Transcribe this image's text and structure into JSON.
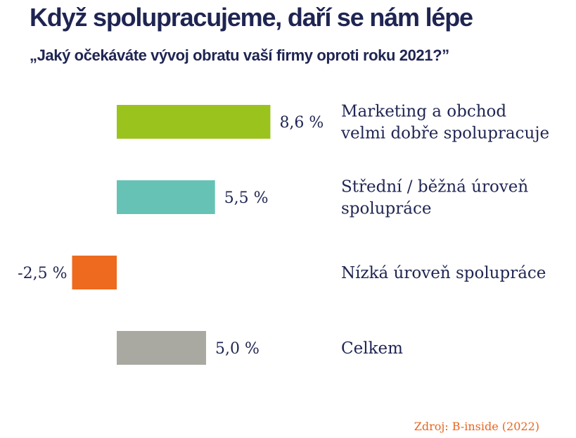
{
  "header": {
    "title": "Když spolupracujeme, daří se nám lépe",
    "subtitle": "„Jaký očekáváte vývoj obratu vaší firmy oproti roku 2021?”"
  },
  "source": "Zdroj: B-inside (2022)",
  "chart_data": {
    "type": "bar",
    "orientation": "horizontal",
    "categories": [
      "Marketing a obchod\nvelmi dobře spolupracuje",
      "Střední / běžná úroveň\nspolupráce",
      "Nízká úroveň spolupráce",
      "Celkem"
    ],
    "values": [
      8.6,
      5.5,
      -2.5,
      5.0
    ],
    "value_labels": [
      "8,6 %",
      "5,5 %",
      "-2,5 %",
      "5,0 %"
    ],
    "colors": [
      "#9bc31e",
      "#66c2b5",
      "#ed6a1e",
      "#a9a9a1"
    ],
    "unit": "%",
    "title": "",
    "xlabel": "",
    "ylabel": "",
    "grid": false,
    "legend": "none"
  }
}
